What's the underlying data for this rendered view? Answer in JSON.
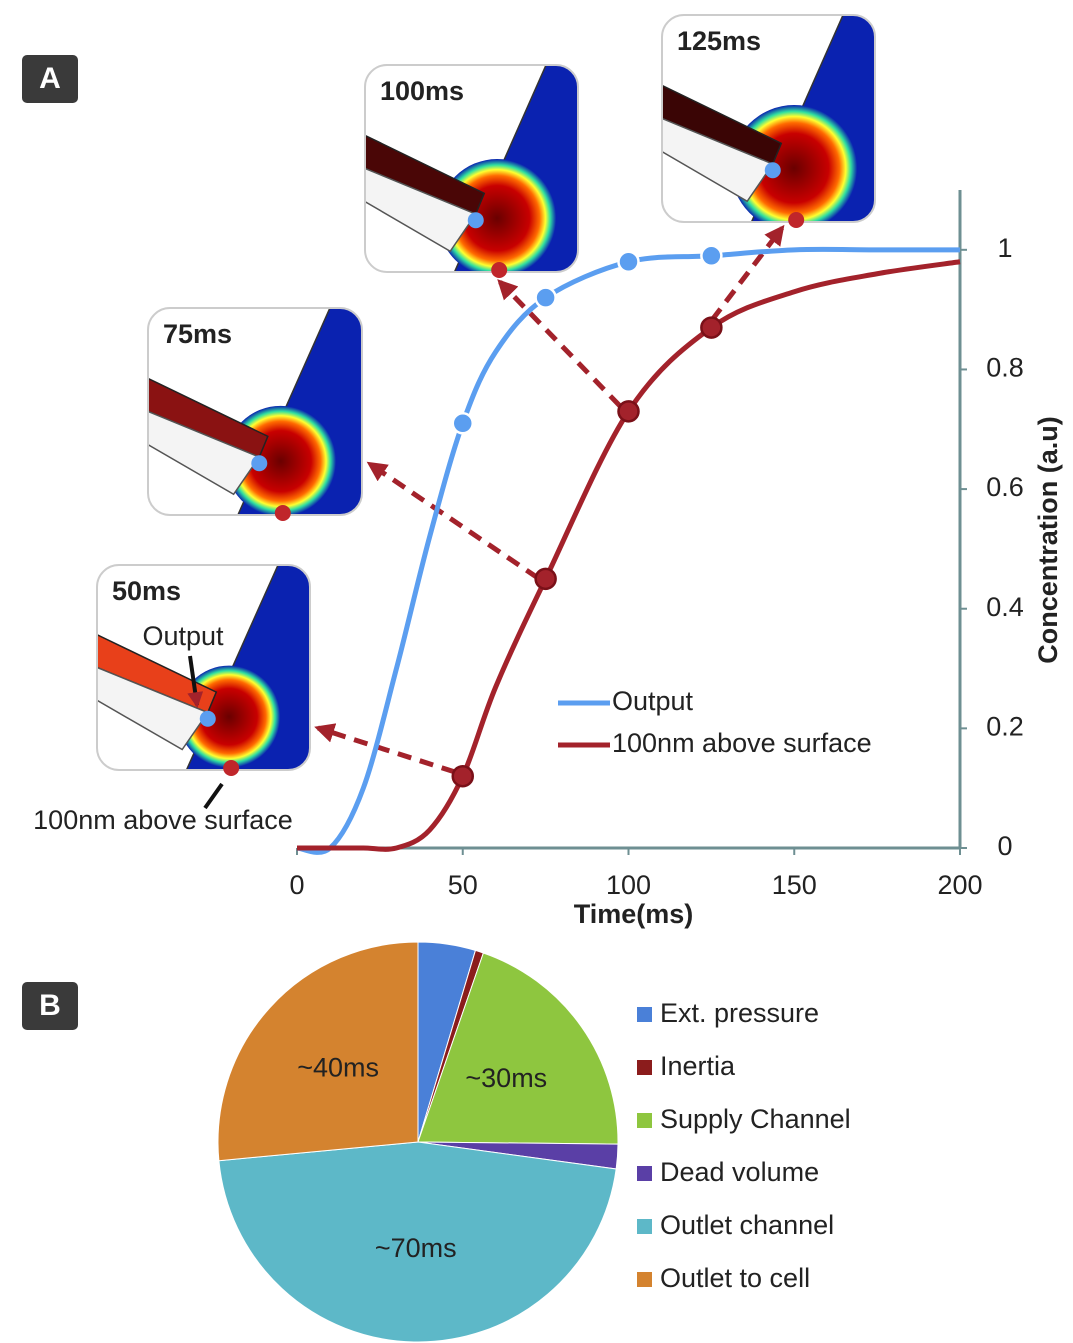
{
  "chart_data": [
    {
      "type": "line",
      "panel": "A",
      "x": [
        0,
        10,
        20,
        30,
        40,
        50,
        60,
        75,
        100,
        125,
        150,
        175,
        200
      ],
      "series": [
        {
          "name": "Output",
          "color": "#5b9ef0",
          "values": [
            0,
            0,
            0.1,
            0.3,
            0.52,
            0.71,
            0.83,
            0.92,
            0.98,
            0.99,
            1.0,
            1.0,
            1.0
          ]
        },
        {
          "name": "100nm above surface",
          "color": "#a3222b",
          "values": [
            0,
            0,
            0,
            0,
            0.03,
            0.12,
            0.27,
            0.45,
            0.73,
            0.87,
            0.93,
            0.96,
            0.98
          ]
        }
      ],
      "markers": [
        50,
        75,
        100,
        125
      ],
      "xlim": [
        0,
        200
      ],
      "xticks": [
        0,
        50,
        100,
        150,
        200
      ],
      "ylim": [
        0,
        1.1
      ],
      "yticks": [
        0,
        0.2,
        0.4,
        0.6,
        0.8,
        1
      ],
      "xlabel": "Time(ms)",
      "ylabel": "Concentration (a.u)",
      "annotations": [
        "50ms",
        "75ms",
        "100ms",
        "125ms",
        "Output",
        "100nm above surface"
      ]
    },
    {
      "type": "pie",
      "panel": "B",
      "categories": [
        "Ext. pressure",
        "Inertia",
        "Supply Channel",
        "Dead volume",
        "Outlet channel",
        "Outlet to cell"
      ],
      "values": [
        7,
        1,
        30,
        3,
        70,
        40
      ],
      "value_labels": [
        null,
        null,
        "~30ms",
        null,
        "~70ms",
        "~40ms"
      ],
      "colors": [
        "#4a80d8",
        "#8b1c1c",
        "#8ec63f",
        "#5a3fa6",
        "#5db8c8",
        "#d4832f"
      ]
    }
  ]
}
